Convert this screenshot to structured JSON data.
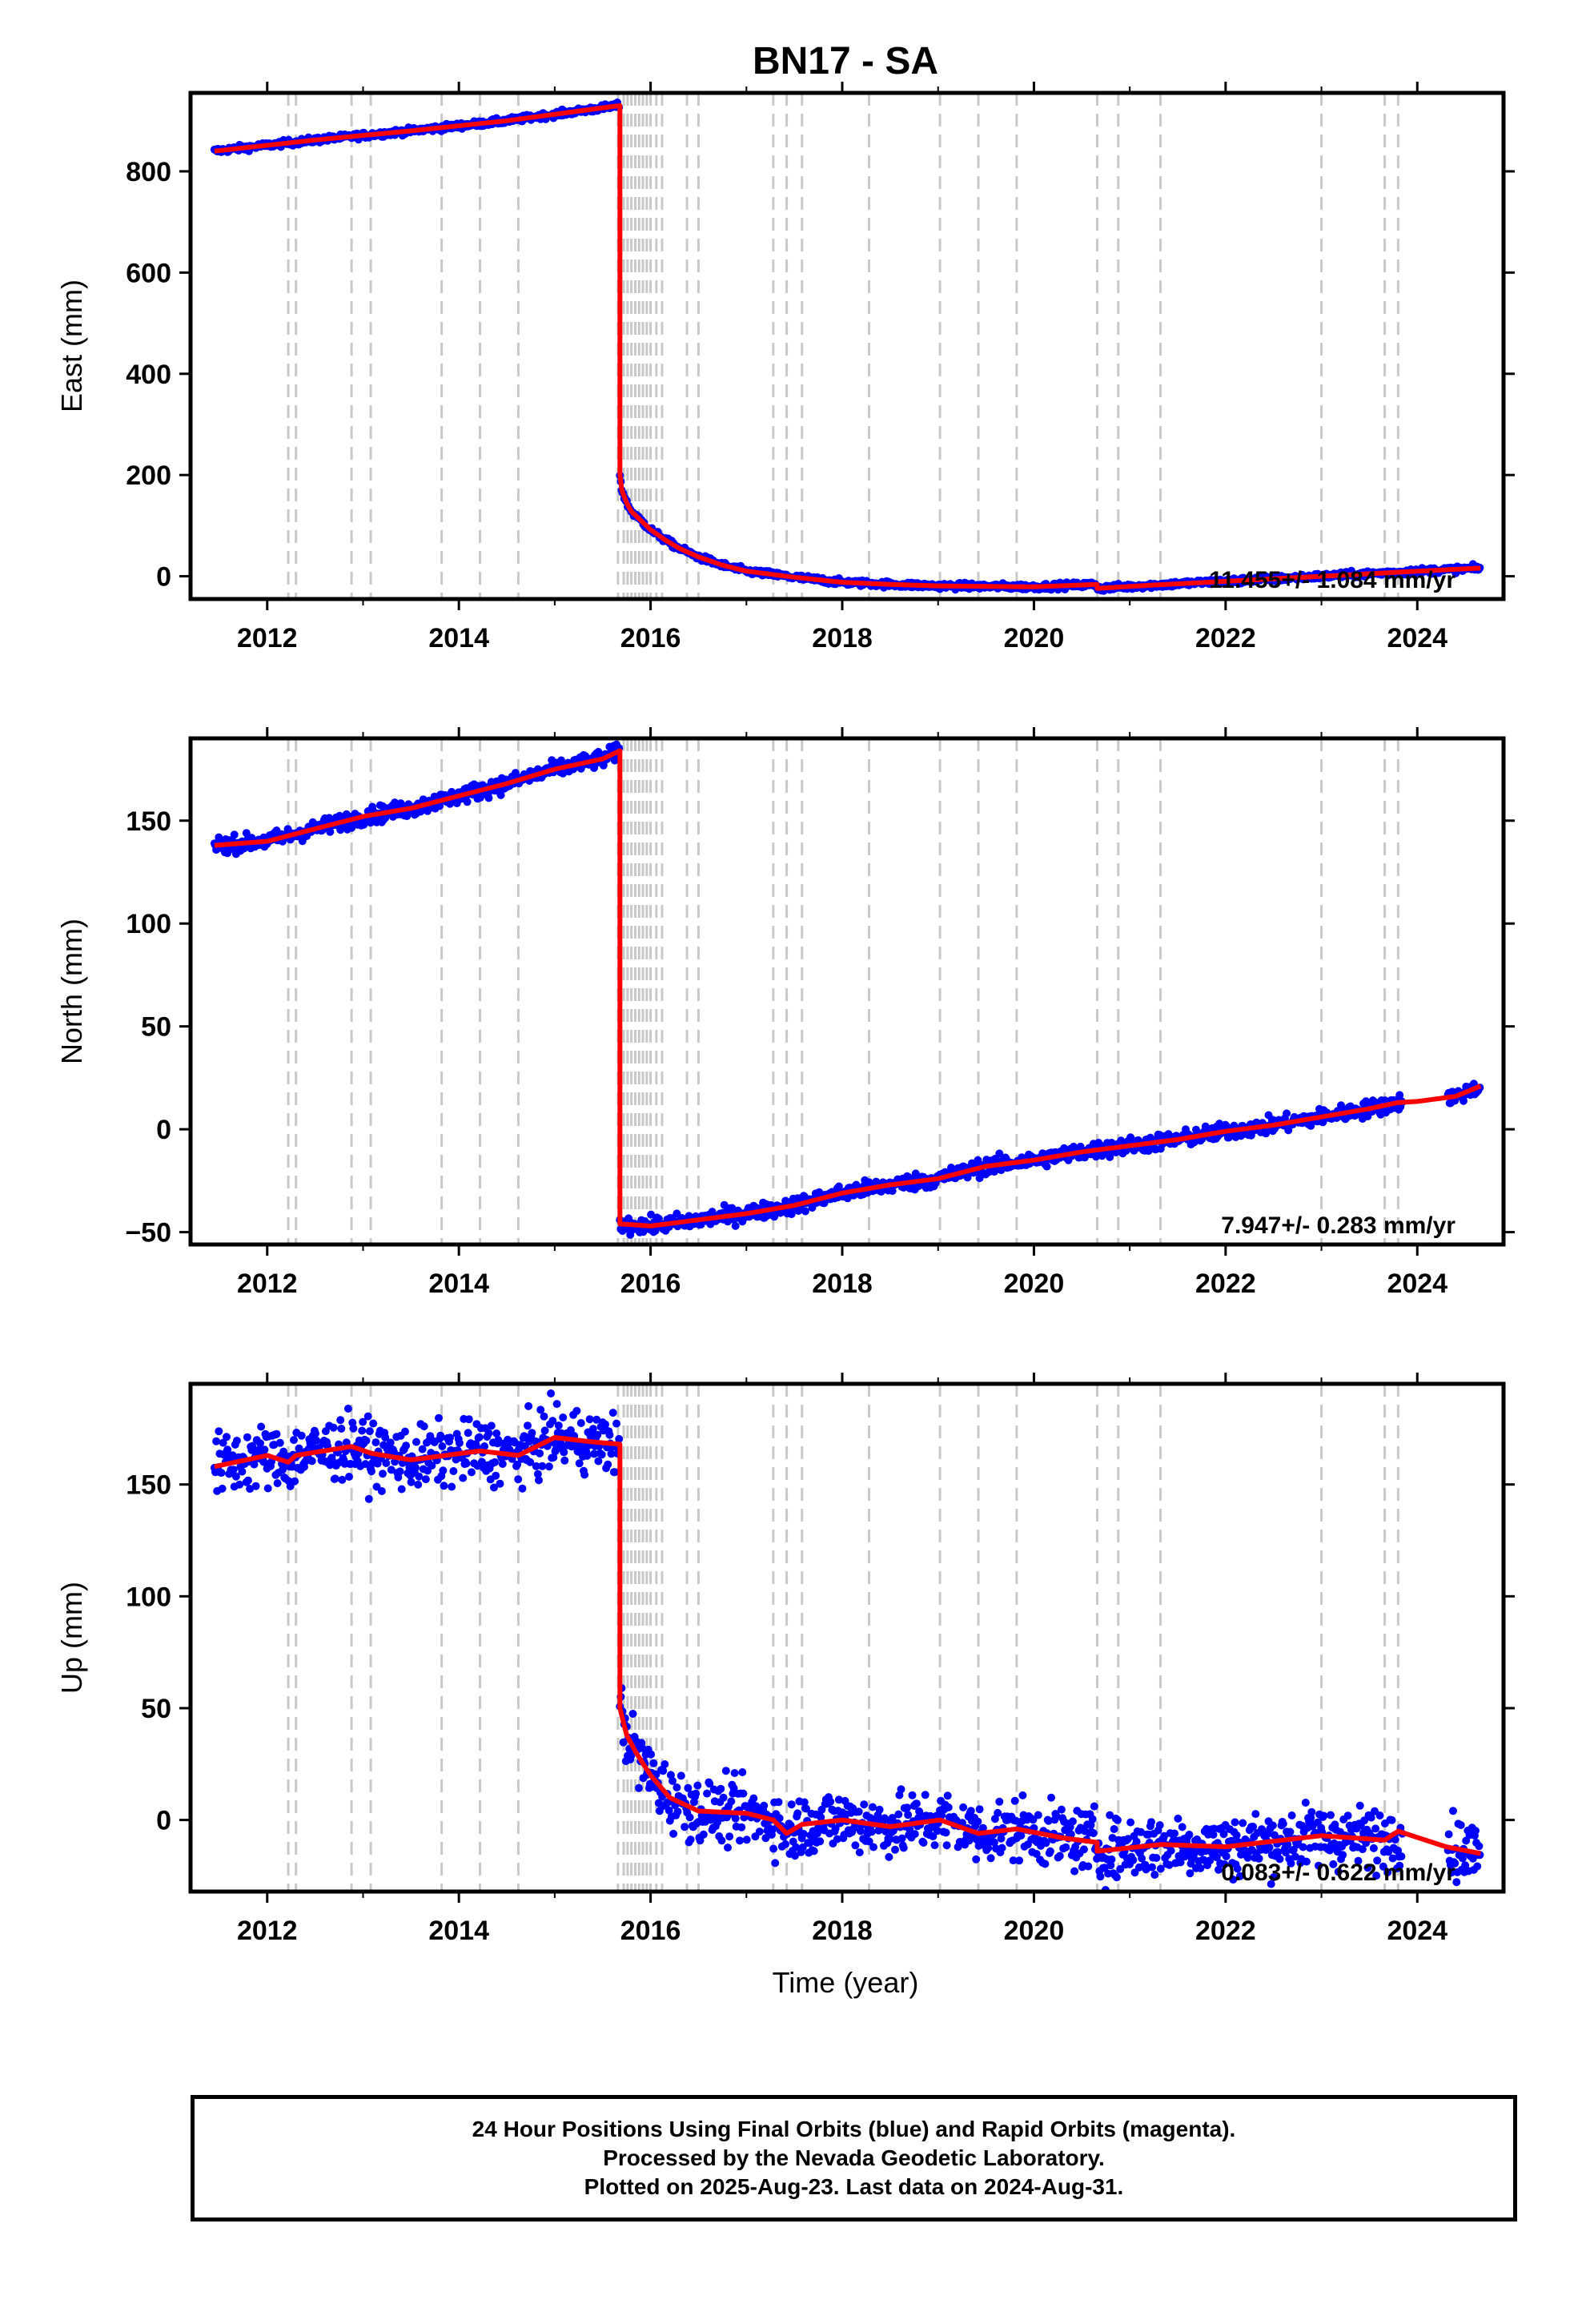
{
  "chart_data": {
    "type": "scatter",
    "title": "BN17 - SA",
    "xlabel": "Time (year)",
    "xlim": [
      2011.2,
      2024.9
    ],
    "x_ticks": [
      2012,
      2014,
      2016,
      2018,
      2020,
      2022,
      2024
    ],
    "event_lines": [
      2012.22,
      2012.3,
      2012.88,
      2013.08,
      2013.82,
      2014.22,
      2014.62,
      2015.66,
      2015.72,
      2015.76,
      2015.8,
      2015.84,
      2015.88,
      2015.92,
      2015.96,
      2016.0,
      2016.06,
      2016.12,
      2016.38,
      2016.5,
      2017.28,
      2017.42,
      2017.58,
      2018.28,
      2019.02,
      2019.42,
      2019.82,
      2020.66,
      2020.88,
      2021.32,
      2023.0,
      2023.66,
      2023.8
    ],
    "panels": [
      {
        "id": "east",
        "ylabel": "East (mm)",
        "ylim": [
          -45,
          955
        ],
        "y_ticks": [
          0,
          200,
          400,
          600,
          800
        ],
        "rate_label": "11.455+/- 1.084 mm/yr",
        "scatter_spread": 3,
        "series": [
          {
            "color": "#0000ff",
            "style": "points"
          },
          {
            "color": "#ff0000",
            "style": "model-line"
          }
        ],
        "model": [
          [
            2011.45,
            840
          ],
          [
            2012.5,
            862
          ],
          [
            2013.5,
            880
          ],
          [
            2014.5,
            900
          ],
          [
            2015.68,
            930
          ],
          [
            2015.68,
            200
          ],
          [
            2015.7,
            170
          ],
          [
            2015.75,
            145
          ],
          [
            2015.8,
            128
          ],
          [
            2015.9,
            110
          ],
          [
            2016.0,
            92
          ],
          [
            2016.15,
            72
          ],
          [
            2016.3,
            55
          ],
          [
            2016.5,
            38
          ],
          [
            2016.75,
            22
          ],
          [
            2017.0,
            10
          ],
          [
            2017.5,
            -2
          ],
          [
            2018.0,
            -12
          ],
          [
            2018.5,
            -16
          ],
          [
            2019.0,
            -19
          ],
          [
            2019.5,
            -20
          ],
          [
            2020.0,
            -21
          ],
          [
            2020.66,
            -16
          ],
          [
            2020.66,
            -24
          ],
          [
            2021.2,
            -18
          ],
          [
            2022.0,
            -10
          ],
          [
            2023.0,
            0
          ],
          [
            2024.0,
            10
          ],
          [
            2024.66,
            16
          ]
        ]
      },
      {
        "id": "north",
        "ylabel": "North (mm)",
        "ylim": [
          -56,
          190
        ],
        "y_ticks": [
          -50,
          0,
          50,
          100,
          150
        ],
        "rate_label": "7.947+/- 0.283 mm/yr",
        "scatter_spread": 2,
        "series": [
          {
            "color": "#0000ff",
            "style": "points"
          },
          {
            "color": "#ff0000",
            "style": "model-line"
          }
        ],
        "model": [
          [
            2011.45,
            138
          ],
          [
            2012.0,
            140
          ],
          [
            2012.5,
            146
          ],
          [
            2013.0,
            152
          ],
          [
            2013.5,
            156
          ],
          [
            2014.0,
            162
          ],
          [
            2014.5,
            168
          ],
          [
            2015.0,
            175
          ],
          [
            2015.5,
            180
          ],
          [
            2015.68,
            184
          ],
          [
            2015.68,
            -46
          ],
          [
            2016.0,
            -47
          ],
          [
            2016.5,
            -44
          ],
          [
            2017.0,
            -41
          ],
          [
            2017.5,
            -37
          ],
          [
            2018.0,
            -31
          ],
          [
            2018.5,
            -27
          ],
          [
            2019.0,
            -24
          ],
          [
            2019.5,
            -18
          ],
          [
            2020.0,
            -15
          ],
          [
            2020.5,
            -11
          ],
          [
            2021.0,
            -8
          ],
          [
            2021.5,
            -5
          ],
          [
            2022.0,
            -1
          ],
          [
            2022.5,
            2
          ],
          [
            2023.0,
            6
          ],
          [
            2023.5,
            10
          ],
          [
            2023.8,
            13
          ],
          [
            2024.0,
            13.5
          ],
          [
            2024.4,
            16
          ],
          [
            2024.66,
            21
          ]
        ]
      },
      {
        "id": "up",
        "ylabel": "Up (mm)",
        "ylim": [
          -32,
          195
        ],
        "y_ticks": [
          0,
          50,
          100,
          150
        ],
        "rate_label": "0.083+/- 0.622 mm/yr",
        "scatter_spread": 7,
        "series": [
          {
            "color": "#0000ff",
            "style": "points"
          },
          {
            "color": "#ff0000",
            "style": "model-line"
          }
        ],
        "model": [
          [
            2011.45,
            158
          ],
          [
            2012.0,
            163
          ],
          [
            2012.22,
            160
          ],
          [
            2012.3,
            163
          ],
          [
            2012.88,
            167
          ],
          [
            2013.08,
            164
          ],
          [
            2013.5,
            161
          ],
          [
            2014.22,
            165
          ],
          [
            2014.62,
            163
          ],
          [
            2015.0,
            171
          ],
          [
            2015.4,
            169
          ],
          [
            2015.68,
            168
          ],
          [
            2015.68,
            50
          ],
          [
            2015.75,
            38
          ],
          [
            2015.85,
            30
          ],
          [
            2016.0,
            20
          ],
          [
            2016.2,
            10
          ],
          [
            2016.5,
            4
          ],
          [
            2017.0,
            3
          ],
          [
            2017.28,
            0
          ],
          [
            2017.42,
            -6
          ],
          [
            2017.58,
            -2
          ],
          [
            2018.0,
            0
          ],
          [
            2018.5,
            -3
          ],
          [
            2019.02,
            0
          ],
          [
            2019.42,
            -6
          ],
          [
            2019.82,
            -4
          ],
          [
            2020.3,
            -8
          ],
          [
            2020.66,
            -10
          ],
          [
            2020.66,
            -14
          ],
          [
            2021.32,
            -11
          ],
          [
            2022.0,
            -12
          ],
          [
            2023.0,
            -7
          ],
          [
            2023.66,
            -9
          ],
          [
            2023.8,
            -5
          ],
          [
            2024.3,
            -12
          ],
          [
            2024.66,
            -15
          ]
        ]
      }
    ]
  },
  "footer": {
    "line1": "24 Hour Positions Using Final Orbits (blue) and Rapid Orbits (magenta).",
    "line2": "Processed by the Nevada Geodetic Laboratory.",
    "line3": "Plotted on 2025-Aug-23. Last data on 2024-Aug-31."
  }
}
